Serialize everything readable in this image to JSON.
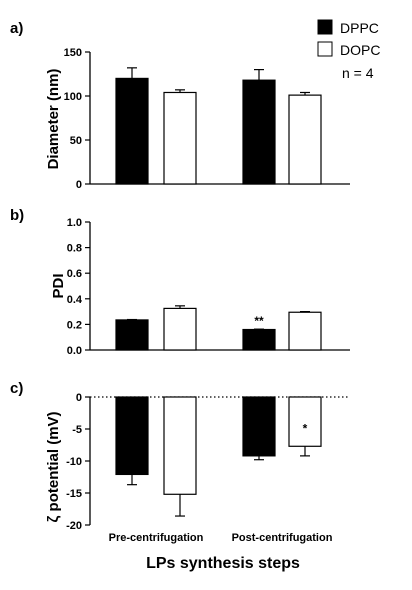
{
  "legend": {
    "items": [
      {
        "name": "DPPC",
        "color": "#000000"
      },
      {
        "name": "DOPC",
        "color": "#ffffff"
      }
    ],
    "note": "n = 4"
  },
  "xlabel": "LPs synthesis steps",
  "chart_data": [
    {
      "type": "bar",
      "panel_label": "a)",
      "ylabel": "Diameter (nm)",
      "ylim": [
        0,
        150
      ],
      "yticks": [
        "0",
        "50",
        "100",
        "150"
      ],
      "categories": [
        "Pre-centrifugation",
        "Post-centrifugation"
      ],
      "series": [
        {
          "name": "DPPC",
          "values": [
            120,
            118
          ],
          "errors": [
            12,
            12
          ]
        },
        {
          "name": "DOPC",
          "values": [
            104,
            101
          ],
          "errors": [
            3,
            3
          ]
        }
      ],
      "annotations": []
    },
    {
      "type": "bar",
      "panel_label": "b)",
      "ylabel": "PDI",
      "ylim": [
        0,
        1.0
      ],
      "yticks": [
        "0.0",
        "0.2",
        "0.4",
        "0.6",
        "0.8",
        "1.0"
      ],
      "categories": [
        "Pre-centrifugation",
        "Post-centrifugation"
      ],
      "series": [
        {
          "name": "DPPC",
          "values": [
            0.235,
            0.16
          ],
          "errors": [
            0.003,
            0.003
          ]
        },
        {
          "name": "DOPC",
          "values": [
            0.325,
            0.295
          ],
          "errors": [
            0.02,
            0.005
          ]
        }
      ],
      "annotations": [
        {
          "text": "**",
          "series": 0,
          "category": 1
        }
      ]
    },
    {
      "type": "bar",
      "panel_label": "c)",
      "ylabel": "ζ potential (mV)",
      "ylim": [
        -20,
        0
      ],
      "yticks": [
        "0",
        "-5",
        "-10",
        "-15",
        "-20"
      ],
      "reference_line": 0,
      "categories": [
        "Pre-centrifugation",
        "Post-centrifugation"
      ],
      "series": [
        {
          "name": "DPPC",
          "values": [
            -12.1,
            -9.2
          ],
          "errors": [
            1.6,
            0.6
          ]
        },
        {
          "name": "DOPC",
          "values": [
            -15.2,
            -7.7
          ],
          "errors": [
            3.4,
            1.5
          ]
        }
      ],
      "annotations": [
        {
          "text": "*",
          "series": 1,
          "category": 1
        }
      ]
    }
  ]
}
